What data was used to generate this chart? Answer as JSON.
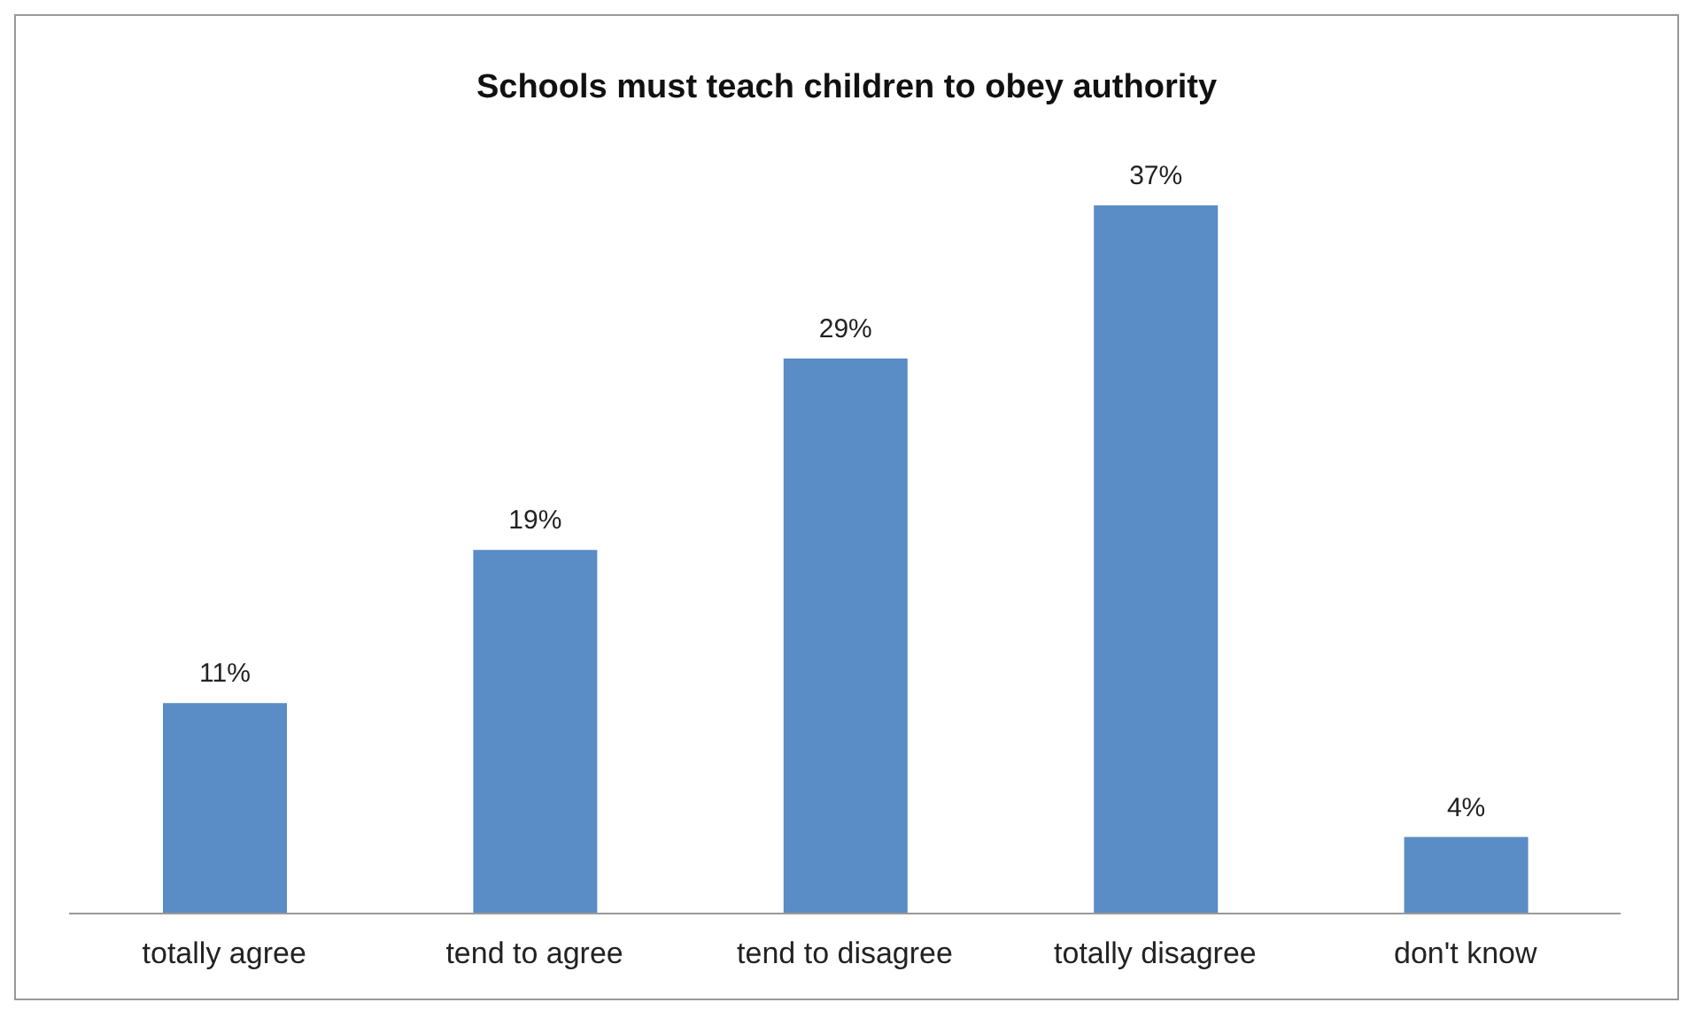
{
  "chart_data": {
    "type": "bar",
    "title": "Schools must teach children to obey authority",
    "categories": [
      "totally agree",
      "tend to agree",
      "tend to disagree",
      "totally disagree",
      "don't know"
    ],
    "values": [
      11,
      19,
      29,
      37,
      4
    ],
    "value_labels": [
      "11%",
      "19%",
      "29%",
      "37%",
      "4%"
    ],
    "color": "#5a8cc6"
  }
}
